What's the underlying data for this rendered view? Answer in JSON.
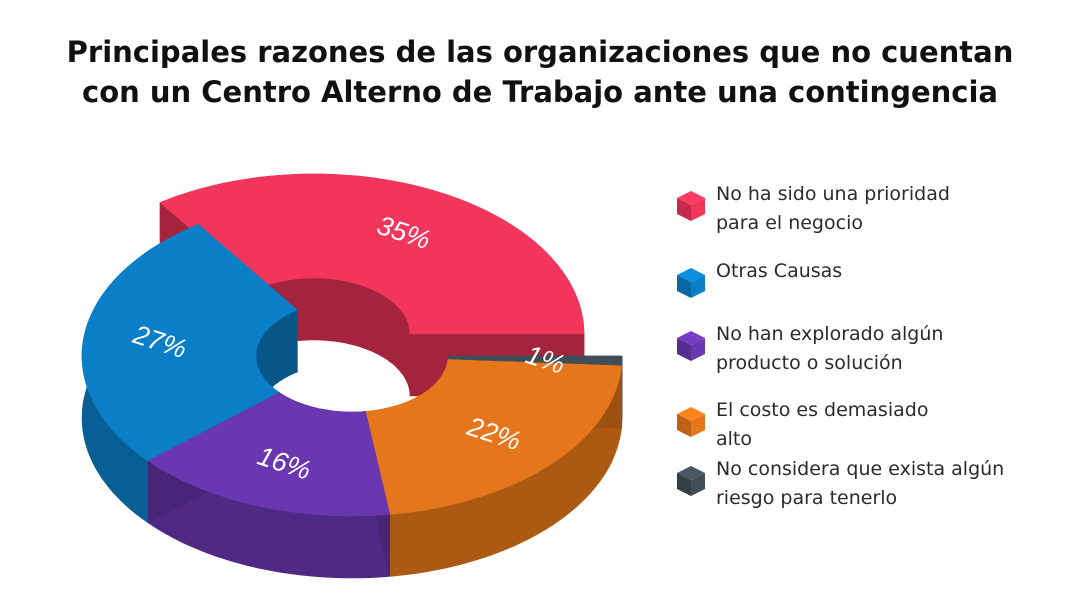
{
  "title": {
    "line1": "Principales razones de las organizaciones que no cuentan",
    "line2": "con un Centro Alterno de Trabajo ante una contingencia"
  },
  "chart_data": {
    "type": "pie",
    "variant": "3d-donut",
    "title": "Principales razones de las organizaciones que no cuentan con un Centro Alterno de Trabajo ante una contingencia",
    "series": [
      {
        "name": "No ha sido una prioridad para el negocio",
        "value": 35,
        "label": "35%",
        "color": "#F2355A"
      },
      {
        "name": "Otras Causas",
        "value": 27,
        "label": "27%",
        "color": "#0A7FC7"
      },
      {
        "name": "No han explorado algún producto o solución",
        "value": 16,
        "label": "16%",
        "color": "#6A37B0"
      },
      {
        "name": "El costo es demasiado alto",
        "value": 22,
        "label": "22%",
        "color": "#E5761B"
      },
      {
        "name": "No considera que exista algún riesgo para tenerlo",
        "value": 1,
        "label": "1%",
        "color": "#3F4E58"
      }
    ],
    "legend_position": "right"
  },
  "legend": [
    {
      "line1": "No ha sido una prioridad",
      "line2": "para el negocio",
      "color": "#F2355A"
    },
    {
      "line1": "Otras Causas",
      "line2": "",
      "color": "#0A7FC7"
    },
    {
      "line1": "No han explorado algún",
      "line2": "producto o solución",
      "color": "#6A37B0"
    },
    {
      "line1": "El costo es demasiado",
      "line2": "alto",
      "color": "#E5761B"
    },
    {
      "line1": "No considera que exista algún",
      "line2": "riesgo para tenerlo",
      "color": "#3F4E58"
    }
  ]
}
